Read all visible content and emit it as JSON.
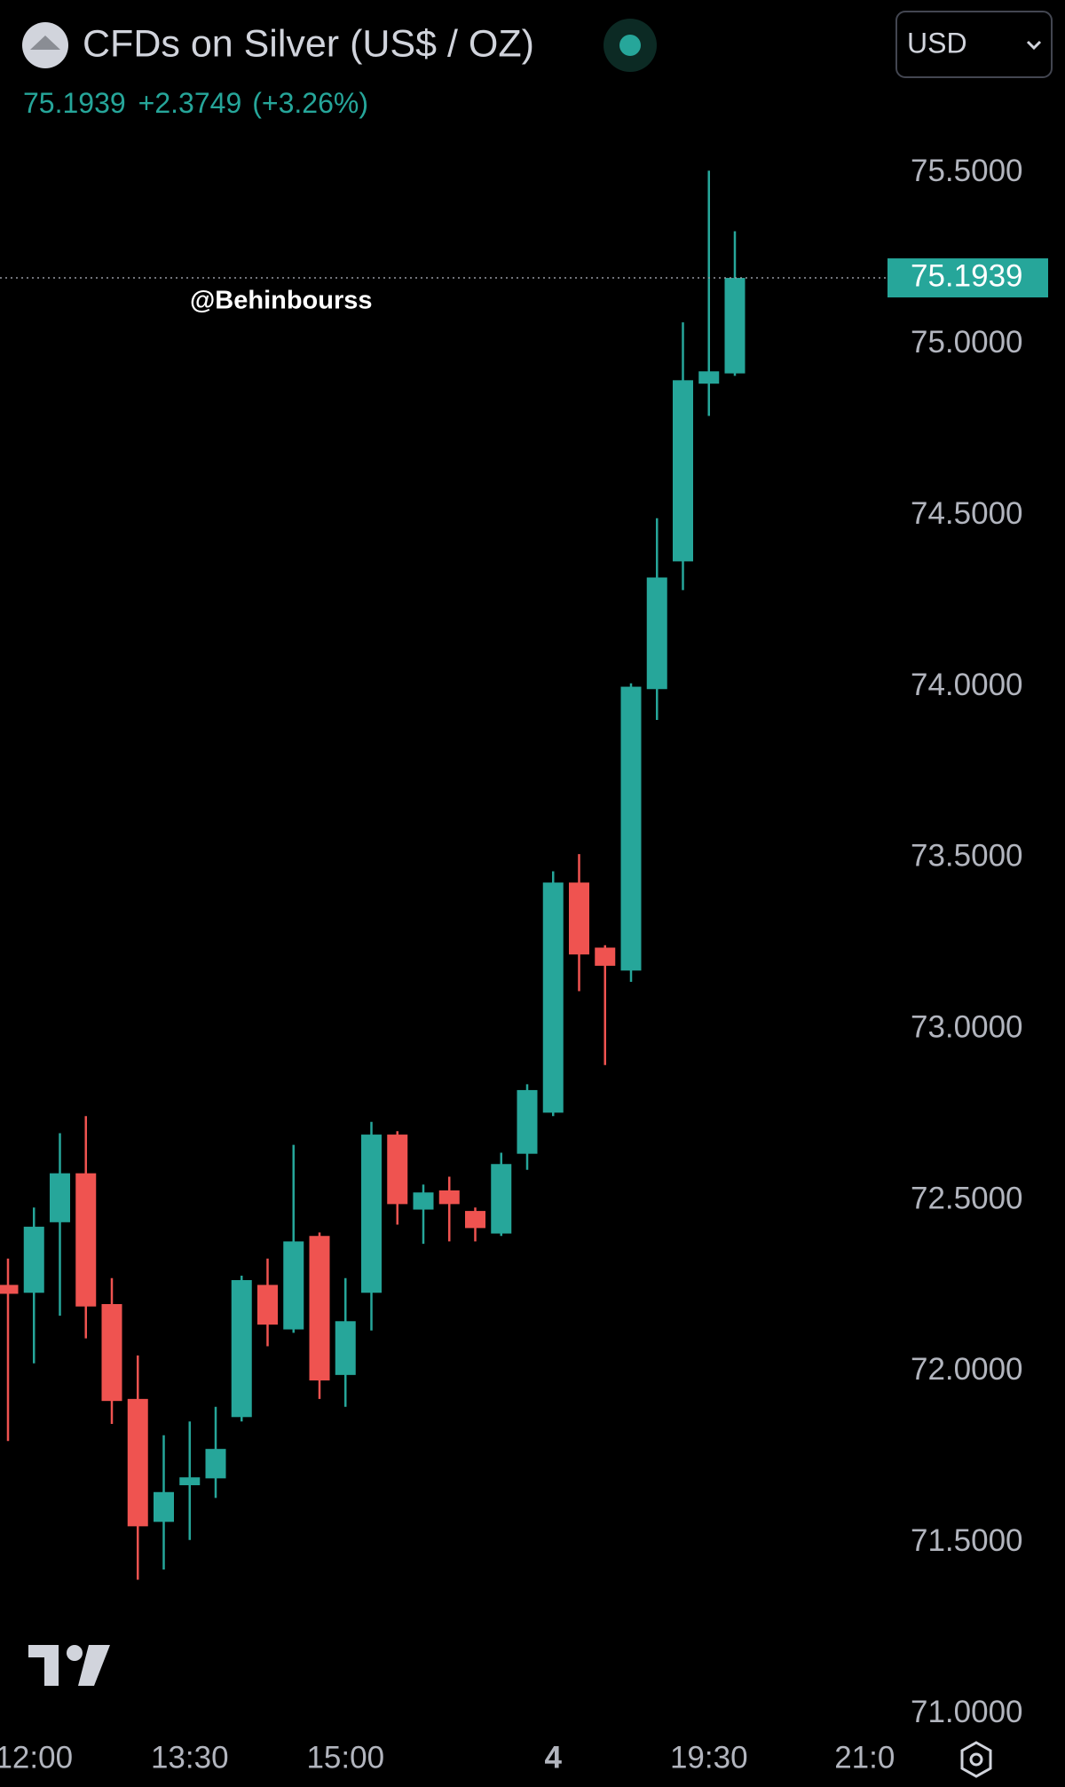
{
  "chart_data": {
    "type": "candlestick",
    "title": "CFDs on Silver (US$ / OZ)",
    "last_price": 75.1939,
    "change": "+2.3749",
    "change_percent": "(+3.26%)",
    "currency": "USD",
    "watermark": "@Behinbourss",
    "up_color": "#26a69a",
    "down_color": "#ef5350",
    "categories": [
      null,
      "12:00",
      null,
      null,
      null,
      null,
      null,
      "13:30",
      null,
      null,
      null,
      null,
      null,
      "15:00",
      null,
      null,
      null,
      null,
      null,
      null,
      null,
      "4",
      null,
      null,
      null,
      null,
      null,
      "19:30",
      null,
      null,
      null,
      null,
      null,
      "21:0"
    ],
    "open": [
      72.253,
      72.23,
      72.436,
      72.579,
      72.197,
      71.92,
      71.561,
      71.668,
      71.688,
      71.867,
      72.253,
      72.123,
      72.396,
      71.99,
      72.23,
      72.692,
      72.473,
      72.529,
      72.469,
      72.403,
      72.636,
      72.756,
      73.428,
      73.238,
      73.171,
      73.993,
      74.366,
      74.885,
      74.915,
      null,
      null,
      null,
      null,
      null
    ],
    "high": [
      72.33,
      72.479,
      72.696,
      72.746,
      72.273,
      72.047,
      71.814,
      71.854,
      71.897,
      72.28,
      72.33,
      72.662,
      72.406,
      72.273,
      72.729,
      72.702,
      72.546,
      72.569,
      72.479,
      72.639,
      72.839,
      73.461,
      73.511,
      73.245,
      74.01,
      74.492,
      75.064,
      75.507,
      75.33,
      null,
      null,
      null,
      null,
      null
    ],
    "low": [
      71.797,
      72.024,
      72.163,
      72.097,
      71.847,
      71.392,
      71.422,
      71.508,
      71.631,
      71.854,
      72.074,
      72.113,
      71.92,
      71.897,
      72.12,
      72.429,
      72.373,
      72.38,
      72.38,
      72.396,
      72.589,
      72.746,
      73.111,
      72.895,
      73.138,
      73.903,
      74.282,
      74.791,
      74.908,
      null,
      null,
      null,
      null,
      null
    ],
    "close": [
      72.227,
      72.423,
      72.579,
      72.19,
      71.914,
      71.548,
      71.648,
      71.691,
      71.774,
      72.267,
      72.137,
      72.38,
      71.974,
      72.147,
      72.692,
      72.489,
      72.523,
      72.489,
      72.419,
      72.606,
      72.822,
      73.428,
      73.218,
      73.185,
      74.0,
      74.319,
      74.895,
      74.921,
      75.1939,
      null,
      null,
      null,
      null,
      null
    ],
    "ylim": [
      70.95,
      75.6
    ],
    "yticks": [
      {
        "value": 71.0,
        "label": "71.0000"
      },
      {
        "value": 71.5,
        "label": "71.5000"
      },
      {
        "value": 72.0,
        "label": "72.0000"
      },
      {
        "value": 72.5,
        "label": "72.5000"
      },
      {
        "value": 73.0,
        "label": "73.0000"
      },
      {
        "value": 73.5,
        "label": "73.5000"
      },
      {
        "value": 74.0,
        "label": "74.0000"
      },
      {
        "value": 74.5,
        "label": "74.5000"
      },
      {
        "value": 75.0,
        "label": "75.0000"
      },
      {
        "value": 75.5,
        "label": "75.5000"
      }
    ]
  }
}
